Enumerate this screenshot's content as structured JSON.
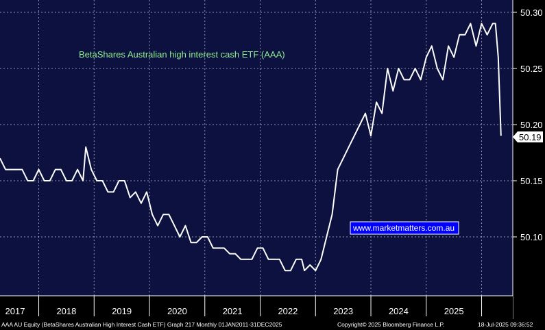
{
  "colors": {
    "background": "#000000",
    "plot_background": "#0c1140",
    "line": "#ffffff",
    "title": "#90ee90",
    "watermark_bg": "#0000ff"
  },
  "chart_data": {
    "type": "line",
    "title": "BetaShares Australian high interest cash ETF (AAA)",
    "xlabel": "",
    "ylabel": "",
    "ylim": [
      50.05,
      50.3
    ],
    "xlim": [
      2016.8,
      2025.85
    ],
    "yticks": [
      "50.10",
      "50.15",
      "50.20",
      "50.25",
      "50.30"
    ],
    "xticks": [
      "2017",
      "2018",
      "2019",
      "2020",
      "2021",
      "2022",
      "2023",
      "2024",
      "2025"
    ],
    "grid": true,
    "legend": "none",
    "last_value_label": "50.19",
    "series": [
      {
        "values": [
          [
            2016.8,
            50.17
          ],
          [
            2016.9,
            50.16
          ],
          [
            2017.0,
            50.16
          ],
          [
            2017.2,
            50.16
          ],
          [
            2017.3,
            50.15
          ],
          [
            2017.4,
            50.15
          ],
          [
            2017.5,
            50.16
          ],
          [
            2017.6,
            50.15
          ],
          [
            2017.7,
            50.15
          ],
          [
            2017.8,
            50.16
          ],
          [
            2017.9,
            50.16
          ],
          [
            2018.0,
            50.15
          ],
          [
            2018.1,
            50.15
          ],
          [
            2018.2,
            50.16
          ],
          [
            2018.3,
            50.15
          ],
          [
            2018.35,
            50.18
          ],
          [
            2018.45,
            50.16
          ],
          [
            2018.55,
            50.15
          ],
          [
            2018.65,
            50.15
          ],
          [
            2018.75,
            50.14
          ],
          [
            2018.85,
            50.14
          ],
          [
            2018.95,
            50.15
          ],
          [
            2019.05,
            50.15
          ],
          [
            2019.15,
            50.135
          ],
          [
            2019.25,
            50.14
          ],
          [
            2019.35,
            50.13
          ],
          [
            2019.45,
            50.14
          ],
          [
            2019.55,
            50.12
          ],
          [
            2019.65,
            50.11
          ],
          [
            2019.75,
            50.12
          ],
          [
            2019.85,
            50.12
          ],
          [
            2019.95,
            50.11
          ],
          [
            2020.05,
            50.1
          ],
          [
            2020.15,
            50.11
          ],
          [
            2020.25,
            50.095
          ],
          [
            2020.35,
            50.095
          ],
          [
            2020.45,
            50.1
          ],
          [
            2020.55,
            50.1
          ],
          [
            2020.65,
            50.09
          ],
          [
            2020.75,
            50.09
          ],
          [
            2020.85,
            50.09
          ],
          [
            2020.95,
            50.085
          ],
          [
            2021.05,
            50.085
          ],
          [
            2021.15,
            50.08
          ],
          [
            2021.25,
            50.08
          ],
          [
            2021.35,
            50.08
          ],
          [
            2021.45,
            50.09
          ],
          [
            2021.55,
            50.09
          ],
          [
            2021.65,
            50.08
          ],
          [
            2021.75,
            50.08
          ],
          [
            2021.85,
            50.08
          ],
          [
            2021.95,
            50.07
          ],
          [
            2022.05,
            50.07
          ],
          [
            2022.15,
            50.08
          ],
          [
            2022.25,
            50.08
          ],
          [
            2022.3,
            50.07
          ],
          [
            2022.4,
            50.075
          ],
          [
            2022.5,
            50.07
          ],
          [
            2022.6,
            50.08
          ],
          [
            2022.7,
            50.1
          ],
          [
            2022.8,
            50.12
          ],
          [
            2022.9,
            50.16
          ],
          [
            2023.0,
            50.17
          ],
          [
            2023.1,
            50.18
          ],
          [
            2023.2,
            50.19
          ],
          [
            2023.3,
            50.2
          ],
          [
            2023.4,
            50.21
          ],
          [
            2023.5,
            50.19
          ],
          [
            2023.6,
            50.22
          ],
          [
            2023.7,
            50.21
          ],
          [
            2023.8,
            50.25
          ],
          [
            2023.9,
            50.23
          ],
          [
            2024.0,
            50.25
          ],
          [
            2024.1,
            50.24
          ],
          [
            2024.2,
            50.24
          ],
          [
            2024.3,
            50.25
          ],
          [
            2024.4,
            50.24
          ],
          [
            2024.5,
            50.26
          ],
          [
            2024.6,
            50.27
          ],
          [
            2024.7,
            50.25
          ],
          [
            2024.8,
            50.24
          ],
          [
            2024.9,
            50.27
          ],
          [
            2025.0,
            50.26
          ],
          [
            2025.1,
            50.28
          ],
          [
            2025.2,
            50.28
          ],
          [
            2025.3,
            50.29
          ],
          [
            2025.4,
            50.27
          ],
          [
            2025.5,
            50.29
          ],
          [
            2025.6,
            50.28
          ],
          [
            2025.7,
            50.29
          ],
          [
            2025.75,
            50.29
          ],
          [
            2025.8,
            50.26
          ],
          [
            2025.85,
            50.19
          ]
        ]
      }
    ]
  },
  "watermark": "www.marketmatters.com.au",
  "footer": {
    "left": "AAA AU Equity (BetaShares Australian High Interest Cash ETF) Graph 217  Monthly 01JAN2011-31DEC2025",
    "middle": "Copyright© 2025 Bloomberg Finance L.P.",
    "right": "18-Jul-2025 09:36:52"
  }
}
